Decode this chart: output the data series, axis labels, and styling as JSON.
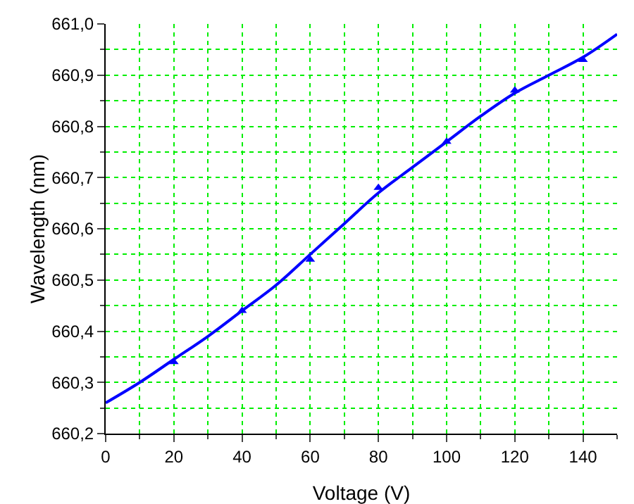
{
  "chart_data": {
    "type": "scatter",
    "xlabel": "Voltage (V)",
    "ylabel": "Wavelength (nm)",
    "xlim": [
      0,
      150
    ],
    "xticks": [
      0,
      20,
      40,
      60,
      80,
      100,
      120,
      140
    ],
    "ylim": [
      660.2,
      661.0
    ],
    "yticks": [
      {
        "value": 660.2,
        "label": "660,2"
      },
      {
        "value": 660.3,
        "label": "660,3"
      },
      {
        "value": 660.4,
        "label": "660,4"
      },
      {
        "value": 660.5,
        "label": "660,5"
      },
      {
        "value": 660.6,
        "label": "660,6"
      },
      {
        "value": 660.7,
        "label": "660,7"
      },
      {
        "value": 660.8,
        "label": "660,8"
      },
      {
        "value": 660.9,
        "label": "660,9"
      },
      {
        "value": 661.0,
        "label": "661,0"
      }
    ],
    "grid": true,
    "marker": "triangle",
    "series": [
      {
        "color": "#0000ff",
        "x": [
          20,
          40,
          60,
          80,
          100,
          120,
          140
        ],
        "values": [
          660.34,
          660.44,
          660.54,
          660.68,
          660.77,
          660.87,
          660.93
        ]
      },
      {
        "type": "line",
        "color": "#0000ff",
        "marker": "none",
        "line_style": "solid",
        "x": [
          0,
          10,
          20,
          30,
          40,
          50,
          60,
          70,
          80,
          90,
          100,
          110,
          120,
          130,
          140,
          150
        ],
        "values": [
          660.26,
          660.3,
          660.345,
          660.39,
          660.44,
          660.49,
          660.55,
          660.61,
          660.67,
          660.72,
          660.77,
          660.82,
          660.865,
          660.9,
          660.935,
          660.98
        ]
      }
    ]
  }
}
